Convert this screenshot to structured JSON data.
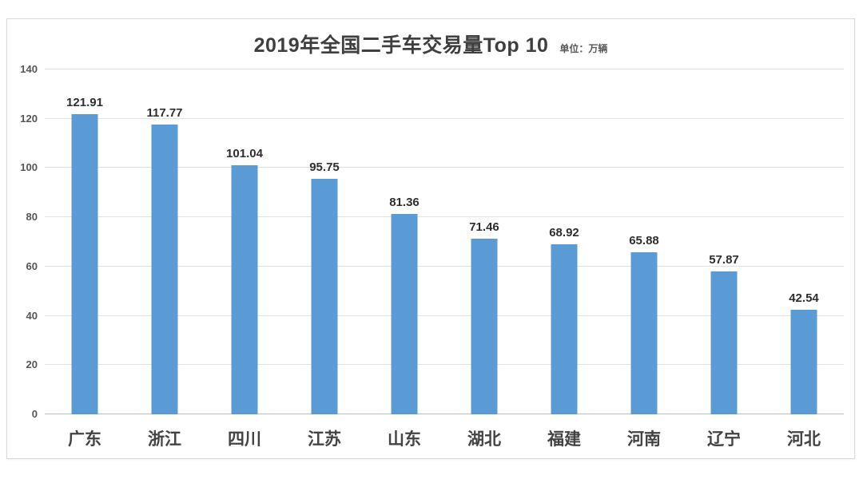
{
  "chart_data": {
    "type": "bar",
    "title": "2019年全国二手车交易量Top 10",
    "unit_label": "单位：万辆",
    "categories": [
      "广东",
      "浙江",
      "四川",
      "江苏",
      "山东",
      "湖北",
      "福建",
      "河南",
      "辽宁",
      "河北"
    ],
    "values": [
      121.91,
      117.77,
      101.04,
      95.75,
      81.36,
      71.46,
      68.92,
      65.88,
      57.87,
      42.54
    ],
    "value_label_decimals": 2,
    "xlabel": "",
    "ylabel": "",
    "ylim": [
      0,
      140
    ],
    "yticks": [
      0,
      20,
      40,
      60,
      80,
      100,
      120,
      140
    ],
    "grid": true,
    "legend": false,
    "bar_color": "#5B9BD5",
    "gridline_color": "#e2e2e2",
    "axis_line_color": "#bdbdbd",
    "title_color": "#3f3f3f",
    "label_color": "#2e2e2e"
  }
}
